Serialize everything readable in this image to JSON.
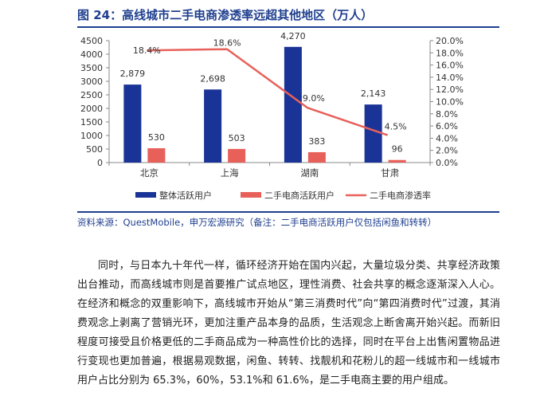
{
  "figure": {
    "title": "图 24：高线城市二手电商渗透率远超其他地区（万人）",
    "source": "资料来源：QuestMobile，申万宏源研究（备注：二手电商活跃用户仅包括闲鱼和转转）"
  },
  "chart_data": {
    "type": "bar+line",
    "title": "",
    "categories": [
      "北京",
      "上海",
      "湖南",
      "甘肃"
    ],
    "series": [
      {
        "name": "整体活跃用户",
        "type": "bar",
        "axis": "left",
        "values": [
          2879,
          2698,
          4270,
          2143
        ],
        "labels": [
          "2,879",
          "2,698",
          "4,270",
          "2,143"
        ],
        "color": "#1a3396"
      },
      {
        "name": "二手电商活跃用户",
        "type": "bar",
        "axis": "left",
        "values": [
          530,
          503,
          383,
          96
        ],
        "labels": [
          "530",
          "503",
          "383",
          "96"
        ],
        "color": "#e8605a"
      },
      {
        "name": "二手电商渗透率",
        "type": "line",
        "axis": "right",
        "values": [
          18.4,
          18.6,
          9.0,
          4.5
        ],
        "labels": [
          "18.4%",
          "18.6%",
          "9.0%",
          "4.5%"
        ],
        "color": "#e8605a"
      }
    ],
    "y_left": {
      "lim": [
        0,
        4500
      ],
      "ticks": [
        "0",
        "500",
        "1000",
        "1500",
        "2000",
        "2500",
        "3000",
        "3500",
        "4000",
        "4500"
      ]
    },
    "y_right": {
      "lim": [
        0,
        20
      ],
      "ticks": [
        "0.0%",
        "2.0%",
        "4.0%",
        "6.0%",
        "8.0%",
        "10.0%",
        "12.0%",
        "14.0%",
        "16.0%",
        "18.0%",
        "20.0%"
      ]
    },
    "grid": false,
    "legend": "bottom"
  },
  "body": {
    "paragraph": "同时，与日本九十年代一样，循环经济开始在国内兴起，大量垃圾分类、共享经济政策出台推动，而高线城市则是首要推广试点地区，理性消费、社会共享的概念逐渐深入人心。在经济和概念的双重影响下，高线城市开始从“第三消费时代”向“第四消费时代”过渡，其消费观念上剥离了营销光环，更加注重产品本身的品质，生活观念上断舍离开始兴起。而新旧程度可接受且价格更低的二手商品成为一种高性价比的选择，同时在平台上出售闲置物品进行变现也更加普遍，根据易观数据，闲鱼、转转、找靓机和花粉儿的超一线城市和一线城市用户占比分别为 65.3%，60%，53.1%和 61.6%，是二手电商主要的用户组成。"
  }
}
